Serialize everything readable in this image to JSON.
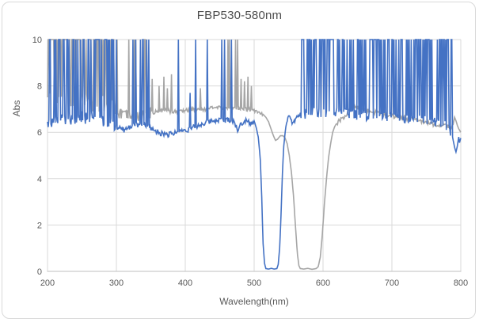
{
  "chart_data": {
    "type": "line",
    "title": "FBP530-580nm",
    "xlabel": "Wavelength(nm)",
    "ylabel": "Abs",
    "xlim": [
      200,
      800
    ],
    "ylim": [
      0,
      10
    ],
    "x_ticks": [
      200,
      300,
      400,
      500,
      600,
      700,
      800
    ],
    "y_ticks": [
      0,
      2,
      4,
      6,
      8,
      10
    ],
    "grid": true,
    "legend": "none",
    "colors": {
      "grid": "#D9D9D9",
      "axis": "#BFBFBF",
      "tick_text": "#595959",
      "title_text": "#4d4d4d",
      "frame_border": "#D9D9D9",
      "background": "#ffffff"
    },
    "description": "Absorbance spectra of a dual bandpass filter set: blue curve blocks (Abs ~6-7 with dense saturated noise spikes to 10) everywhere except a transmission band near 515-535 nm where Abs drops to ~0.1; gray curve is similar with its transmission band near 565-595 nm.",
    "series": [
      {
        "name": "gray-band-580",
        "color": "#A6A6A6",
        "width": 1.6,
        "seed": 11,
        "envelope": [
          [
            200,
            7.4
          ],
          [
            220,
            7.45
          ],
          [
            240,
            7.4
          ],
          [
            260,
            7.35
          ],
          [
            280,
            7.2
          ],
          [
            292,
            7.05
          ],
          [
            300,
            6.9
          ],
          [
            308,
            6.75
          ],
          [
            316,
            6.7
          ],
          [
            324,
            6.65
          ],
          [
            332,
            6.7
          ],
          [
            340,
            6.75
          ],
          [
            350,
            6.85
          ],
          [
            360,
            6.9
          ],
          [
            370,
            6.95
          ],
          [
            380,
            6.9
          ],
          [
            390,
            6.9
          ],
          [
            400,
            6.95
          ],
          [
            415,
            7.0
          ],
          [
            430,
            7.0
          ],
          [
            445,
            7.05
          ],
          [
            460,
            7.05
          ],
          [
            475,
            7.05
          ],
          [
            490,
            7.0
          ],
          [
            500,
            6.95
          ],
          [
            506,
            6.9
          ],
          [
            512,
            6.8
          ],
          [
            517,
            6.65
          ],
          [
            521,
            6.45
          ],
          [
            525,
            6.1
          ],
          [
            528,
            5.85
          ],
          [
            531,
            5.65
          ],
          [
            534,
            5.7
          ],
          [
            538,
            5.85
          ],
          [
            542,
            5.85
          ],
          [
            545,
            5.75
          ],
          [
            548,
            5.5
          ],
          [
            551,
            5.0
          ],
          [
            554,
            4.3
          ],
          [
            557,
            3.3
          ],
          [
            559,
            2.4
          ],
          [
            561,
            1.5
          ],
          [
            563,
            0.7
          ],
          [
            565,
            0.25
          ],
          [
            567,
            0.12
          ],
          [
            572,
            0.1
          ],
          [
            578,
            0.13
          ],
          [
            584,
            0.09
          ],
          [
            590,
            0.12
          ],
          [
            593,
            0.2
          ],
          [
            596,
            0.6
          ],
          [
            599,
            1.6
          ],
          [
            602,
            2.9
          ],
          [
            605,
            4.0
          ],
          [
            608,
            4.9
          ],
          [
            611,
            5.5
          ],
          [
            614,
            6.0
          ],
          [
            617,
            6.25
          ],
          [
            620,
            6.4
          ],
          [
            624,
            6.5
          ],
          [
            628,
            6.6
          ],
          [
            633,
            6.75
          ],
          [
            638,
            6.95
          ],
          [
            643,
            7.05
          ],
          [
            648,
            7.1
          ],
          [
            653,
            7.05
          ],
          [
            658,
            7.0
          ],
          [
            664,
            6.95
          ],
          [
            670,
            6.9
          ],
          [
            678,
            6.85
          ],
          [
            686,
            6.8
          ],
          [
            694,
            6.75
          ],
          [
            702,
            6.7
          ],
          [
            712,
            6.65
          ],
          [
            722,
            6.6
          ],
          [
            732,
            6.55
          ],
          [
            742,
            6.5
          ],
          [
            752,
            6.4
          ],
          [
            762,
            6.35
          ],
          [
            772,
            6.3
          ],
          [
            780,
            6.25
          ],
          [
            786,
            6.2
          ],
          [
            789,
            6.35
          ],
          [
            791,
            6.65
          ],
          [
            793,
            6.5
          ],
          [
            795,
            6.3
          ],
          [
            797,
            6.15
          ],
          [
            800,
            6.0
          ]
        ],
        "noise": [
          {
            "from": 200,
            "to": 300,
            "amp": 0.4
          },
          {
            "from": 300,
            "to": 350,
            "amp": 0.25
          },
          {
            "from": 350,
            "to": 512,
            "amp": 0.09
          },
          {
            "from": 620,
            "to": 788,
            "amp": 0.1
          }
        ],
        "spike_regions": [
          {
            "from": 200,
            "to": 297,
            "density": 0.65,
            "top": 10
          },
          {
            "from": 300,
            "to": 347,
            "density": 0.2,
            "top": 10
          }
        ],
        "spikes": [
          [
            352,
            8.3
          ],
          [
            362,
            8.0
          ],
          [
            369,
            8.4
          ],
          [
            374,
            7.9
          ],
          [
            380,
            8.5
          ],
          [
            422,
            7.9
          ],
          [
            462,
            10
          ],
          [
            464,
            10
          ],
          [
            473,
            10
          ],
          [
            476,
            10
          ],
          [
            481,
            8.3
          ],
          [
            486,
            8.2
          ],
          [
            491,
            8.4
          ],
          [
            496,
            8.0
          ]
        ]
      },
      {
        "name": "blue-band-530",
        "color": "#4472C4",
        "width": 1.6,
        "seed": 7,
        "envelope": [
          [
            200,
            6.3
          ],
          [
            210,
            6.55
          ],
          [
            220,
            6.5
          ],
          [
            230,
            6.55
          ],
          [
            240,
            6.6
          ],
          [
            250,
            6.65
          ],
          [
            260,
            6.6
          ],
          [
            270,
            6.6
          ],
          [
            280,
            6.55
          ],
          [
            288,
            6.45
          ],
          [
            296,
            6.3
          ],
          [
            304,
            6.15
          ],
          [
            312,
            6.1
          ],
          [
            320,
            6.25
          ],
          [
            328,
            6.3
          ],
          [
            336,
            6.3
          ],
          [
            344,
            6.25
          ],
          [
            352,
            6.15
          ],
          [
            360,
            6.0
          ],
          [
            368,
            5.95
          ],
          [
            376,
            5.9
          ],
          [
            384,
            5.95
          ],
          [
            392,
            6.05
          ],
          [
            400,
            6.1
          ],
          [
            408,
            6.15
          ],
          [
            416,
            6.25
          ],
          [
            424,
            6.35
          ],
          [
            432,
            6.45
          ],
          [
            440,
            6.5
          ],
          [
            448,
            6.55
          ],
          [
            456,
            6.5
          ],
          [
            464,
            6.55
          ],
          [
            470,
            6.5
          ],
          [
            474,
            6.25
          ],
          [
            477,
            6.05
          ],
          [
            480,
            6.3
          ],
          [
            485,
            6.5
          ],
          [
            490,
            6.55
          ],
          [
            494,
            6.4
          ],
          [
            498,
            6.45
          ],
          [
            501,
            6.4
          ],
          [
            503,
            6.2
          ],
          [
            506,
            5.8
          ],
          [
            509,
            4.8
          ],
          [
            511,
            3.2
          ],
          [
            513,
            1.2
          ],
          [
            515,
            0.35
          ],
          [
            517,
            0.12
          ],
          [
            521,
            0.1
          ],
          [
            525,
            0.13
          ],
          [
            529,
            0.1
          ],
          [
            533,
            0.12
          ],
          [
            535,
            0.3
          ],
          [
            537,
            1.0
          ],
          [
            539,
            2.4
          ],
          [
            541,
            4.2
          ],
          [
            543,
            5.4
          ],
          [
            545,
            6.0
          ],
          [
            548,
            6.5
          ],
          [
            551,
            6.7
          ],
          [
            553,
            6.6
          ],
          [
            556,
            6.35
          ],
          [
            558,
            6.45
          ],
          [
            561,
            6.6
          ],
          [
            565,
            6.7
          ],
          [
            575,
            6.8
          ],
          [
            590,
            6.85
          ],
          [
            610,
            6.85
          ],
          [
            630,
            6.8
          ],
          [
            650,
            6.75
          ],
          [
            670,
            6.7
          ],
          [
            690,
            6.7
          ],
          [
            710,
            6.65
          ],
          [
            730,
            6.6
          ],
          [
            750,
            6.5
          ],
          [
            765,
            6.45
          ],
          [
            778,
            6.35
          ],
          [
            784,
            6.15
          ],
          [
            788,
            5.8
          ],
          [
            791,
            5.35
          ],
          [
            793,
            5.15
          ],
          [
            795,
            5.4
          ],
          [
            797,
            5.8
          ],
          [
            798,
            5.55
          ],
          [
            800,
            5.75
          ]
        ],
        "noise": [
          {
            "from": 200,
            "to": 300,
            "amp": 0.28
          },
          {
            "from": 300,
            "to": 500,
            "amp": 0.12
          },
          {
            "from": 545,
            "to": 565,
            "amp": 0.08
          },
          {
            "from": 567,
            "to": 786,
            "amp": 0.22
          }
        ],
        "spike_regions": [
          {
            "from": 201,
            "to": 296,
            "density": 0.42,
            "top": 10
          },
          {
            "from": 300,
            "to": 350,
            "density": 0.1,
            "top": 10
          },
          {
            "from": 567,
            "to": 787,
            "density": 0.5,
            "top": 10
          }
        ],
        "spikes": [
          [
            335,
            10
          ],
          [
            338,
            10
          ],
          [
            347,
            10
          ],
          [
            390,
            10
          ],
          [
            407,
            7.7
          ],
          [
            415,
            10
          ],
          [
            432,
            10
          ],
          [
            453,
            10
          ],
          [
            457,
            10
          ],
          [
            467,
            10
          ]
        ]
      }
    ]
  }
}
